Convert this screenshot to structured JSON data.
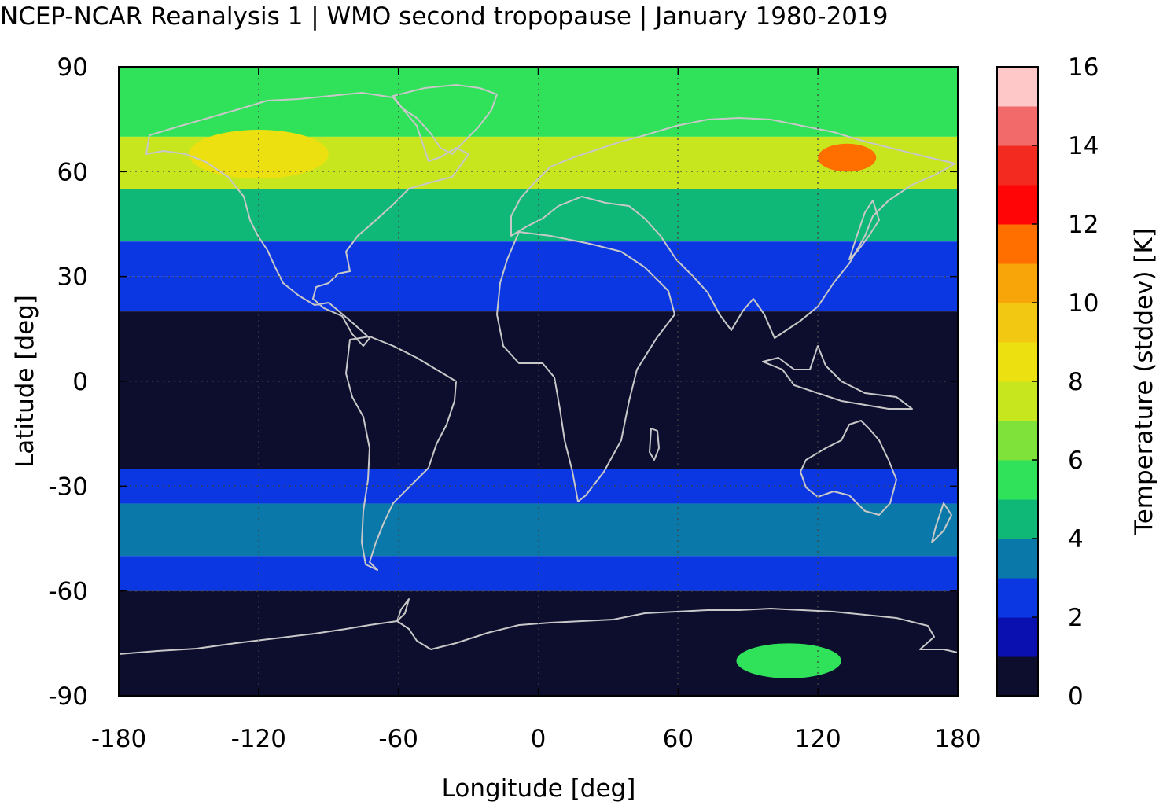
{
  "title": "NCEP-NCAR Reanalysis 1 | WMO second tropopause | January 1980-2019",
  "chart_data": {
    "type": "heatmap",
    "title": "NCEP-NCAR Reanalysis 1 | WMO second tropopause | January 1980-2019",
    "xlabel": "Longitude [deg]",
    "ylabel": "Latitude [deg]",
    "xlim": [
      -180,
      180
    ],
    "ylim": [
      -90,
      90
    ],
    "xticks": [
      "-180",
      "-120",
      "-60",
      "0",
      "60",
      "120",
      "180"
    ],
    "yticks": [
      "90",
      "60",
      "30",
      "0",
      "-30",
      "-60",
      "-90"
    ],
    "grid": true,
    "colorbar": {
      "label": "Temperature (stddev) [K]",
      "range": [
        0,
        16
      ],
      "ticks": [
        "0",
        "2",
        "4",
        "6",
        "8",
        "10",
        "12",
        "14",
        "16"
      ],
      "levels": [
        "#0d0d2e",
        "#0a10b0",
        "#0b37e3",
        "#0a78a8",
        "#10b878",
        "#2fe25a",
        "#7ee23a",
        "#c8e61e",
        "#ece010",
        "#f2c812",
        "#f7a508",
        "#ff6f00",
        "#ff0505",
        "#f22a20",
        "#f26a6a",
        "#ffc8c8"
      ]
    },
    "zonal_band_values": [
      {
        "lat_range": [
          70,
          90
        ],
        "value": 5.6
      },
      {
        "lat_range": [
          55,
          70
        ],
        "value": 7.5
      },
      {
        "lat_range": [
          40,
          55
        ],
        "value": 4.5
      },
      {
        "lat_range": [
          30,
          40
        ],
        "value": 2.8
      },
      {
        "lat_range": [
          20,
          30
        ],
        "value": 2.2
      },
      {
        "lat_range": [
          -25,
          20
        ],
        "value": 0.5
      },
      {
        "lat_range": [
          -35,
          -25
        ],
        "value": 2.2
      },
      {
        "lat_range": [
          -50,
          -35
        ],
        "value": 3.3
      },
      {
        "lat_range": [
          -60,
          -50
        ],
        "value": 2.2
      },
      {
        "lat_range": [
          -90,
          -60
        ],
        "value": 0.5
      }
    ],
    "notable_features": [
      {
        "lon_range": [
          120,
          145
        ],
        "lat_range": [
          60,
          68
        ],
        "value": 11
      },
      {
        "lon_range": [
          -150,
          -90
        ],
        "lat_range": [
          58,
          72
        ],
        "value": 8.5
      },
      {
        "lon_range": [
          85,
          130
        ],
        "lat_range": [
          -85,
          -75
        ],
        "value": 5
      }
    ]
  }
}
